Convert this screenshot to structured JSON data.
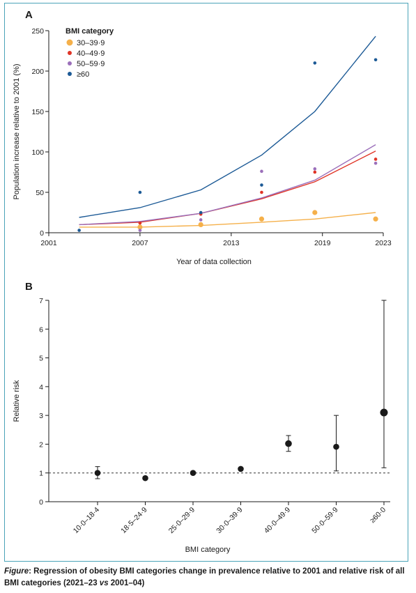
{
  "panel_a": {
    "label": "A",
    "chart_data": {
      "type": "scatter",
      "xlabel": "Year of data collection",
      "ylabel": "Population increase relative to 2001 (%)",
      "xlim": [
        2001,
        2023
      ],
      "ylim": [
        0,
        250
      ],
      "xticks": [
        2001,
        2007,
        2013,
        2019,
        2023
      ],
      "yticks": [
        0,
        50,
        100,
        150,
        200,
        250
      ],
      "legend": {
        "title": "BMI category",
        "placement": "top-left"
      },
      "series": [
        {
          "name": "30–39·9",
          "color": "#f5b04a",
          "points": [
            [
              2007,
              7
            ],
            [
              2011,
              10
            ],
            [
              2015,
              17
            ],
            [
              2018.5,
              25
            ],
            [
              2022.5,
              17
            ]
          ],
          "fit": [
            [
              2003,
              7
            ],
            [
              2007,
              7
            ],
            [
              2011,
              9
            ],
            [
              2015,
              13
            ],
            [
              2018.5,
              17
            ],
            [
              2022.5,
              25
            ]
          ]
        },
        {
          "name": "40–49·9",
          "color": "#e03426",
          "points": [
            [
              2007,
              12
            ],
            [
              2011,
              23
            ],
            [
              2015,
              50
            ],
            [
              2018.5,
              75
            ],
            [
              2022.5,
              91
            ]
          ],
          "fit": [
            [
              2003,
              10
            ],
            [
              2007,
              13
            ],
            [
              2011,
              24
            ],
            [
              2015,
              42
            ],
            [
              2018.5,
              63
            ],
            [
              2022.5,
              101
            ]
          ]
        },
        {
          "name": "50–59·9",
          "color": "#9b6fba",
          "points": [
            [
              2007,
              3
            ],
            [
              2011,
              16
            ],
            [
              2015,
              76
            ],
            [
              2018.5,
              79
            ],
            [
              2022.5,
              86
            ]
          ],
          "fit": [
            [
              2003,
              10
            ],
            [
              2007,
              14
            ],
            [
              2011,
              24
            ],
            [
              2015,
              43
            ],
            [
              2018.5,
              65
            ],
            [
              2022.5,
              109
            ]
          ]
        },
        {
          "name": "≥60",
          "color": "#1c5a96",
          "points": [
            [
              2003,
              3
            ],
            [
              2007,
              50
            ],
            [
              2011,
              25
            ],
            [
              2015,
              59
            ],
            [
              2018.5,
              210
            ],
            [
              2022.5,
              214
            ]
          ],
          "fit": [
            [
              2003,
              19
            ],
            [
              2007,
              31
            ],
            [
              2011,
              53
            ],
            [
              2015,
              96
            ],
            [
              2018.5,
              150
            ],
            [
              2022.5,
              243
            ]
          ]
        }
      ]
    }
  },
  "panel_b": {
    "label": "B",
    "chart_data": {
      "type": "scatter",
      "xlabel": "BMI category",
      "ylabel": "Relative risk",
      "ylim": [
        0,
        7
      ],
      "yticks": [
        0,
        1,
        2,
        3,
        4,
        5,
        6,
        7
      ],
      "reference_line": 1,
      "categories": [
        "10·0–18·4",
        "18·5–24·9",
        "25·0–29·9",
        "30·0–39·9",
        "40·0–49·9",
        "50·0–59·9",
        "≥60·0"
      ],
      "values": [
        1.0,
        0.82,
        1.0,
        1.14,
        2.02,
        1.91,
        3.1
      ],
      "error_low": [
        0.8,
        null,
        null,
        null,
        1.75,
        1.07,
        1.18
      ],
      "error_high": [
        1.22,
        null,
        null,
        null,
        2.3,
        3.0,
        7.0
      ]
    }
  },
  "caption": {
    "lead": "Figure",
    "text": ": Regression of obesity BMI categories change in prevalence relative to 2001 and relative risk of all BMI categories (2021–23 ",
    "vs": "vs",
    "tail": " 2001–04)"
  }
}
